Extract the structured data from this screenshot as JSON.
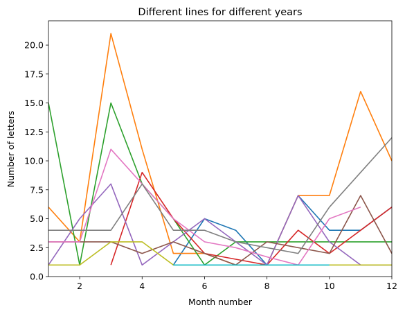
{
  "chart_data": {
    "type": "line",
    "title": "Different lines for different years",
    "xlabel": "Month number",
    "ylabel": "Number of letters",
    "xlim": [
      1,
      12
    ],
    "ylim": [
      0,
      22.1
    ],
    "xticks": [
      2,
      4,
      6,
      8,
      10,
      12
    ],
    "yticks": [
      0.0,
      2.5,
      5.0,
      7.5,
      10.0,
      12.5,
      15.0,
      17.5,
      20.0
    ],
    "ytick_labels": [
      "0.0",
      "2.5",
      "5.0",
      "7.5",
      "10.0",
      "12.5",
      "15.0",
      "17.5",
      "20.0"
    ],
    "grid": false,
    "legend": "none",
    "series": [
      {
        "color": "#1f77b4",
        "x": [
          5,
          6,
          7,
          8,
          9,
          10,
          11,
          12
        ],
        "values": [
          1,
          5,
          4,
          1,
          7,
          4,
          4,
          6
        ]
      },
      {
        "color": "#ff7f0e",
        "x": [
          1,
          2,
          3,
          4,
          5,
          6,
          7,
          8,
          9,
          10,
          11,
          12
        ],
        "values": [
          6,
          3,
          21,
          11,
          2,
          2,
          1,
          1,
          7,
          7,
          16,
          10
        ]
      },
      {
        "color": "#2ca02c",
        "x": [
          1,
          2,
          3,
          4,
          5,
          6,
          7,
          8,
          9,
          10,
          11,
          12
        ],
        "values": [
          15,
          1,
          15,
          8,
          5,
          1,
          3,
          3,
          3,
          3,
          3,
          3
        ]
      },
      {
        "color": "#d62728",
        "x": [
          3,
          4,
          5,
          6,
          7,
          8,
          9,
          10,
          11,
          12
        ],
        "values": [
          1,
          9,
          5,
          2,
          1.5,
          1,
          4,
          2,
          4,
          6
        ]
      },
      {
        "color": "#9467bd",
        "x": [
          1,
          2,
          3,
          4,
          5,
          6,
          7,
          8,
          9,
          10,
          11,
          12
        ],
        "values": [
          1,
          5,
          8,
          1,
          3,
          5,
          3,
          1,
          7,
          3,
          1,
          1
        ]
      },
      {
        "color": "#8c564b",
        "x": [
          1,
          2,
          3,
          4,
          5,
          6,
          7,
          8,
          9,
          10,
          11,
          12
        ],
        "values": [
          3,
          3,
          3,
          2,
          3,
          2,
          1,
          3,
          2.5,
          2,
          7,
          2
        ]
      },
      {
        "color": "#e377c2",
        "x": [
          1,
          2,
          3,
          4,
          5,
          6,
          7,
          8,
          9,
          10,
          11
        ],
        "values": [
          3,
          3,
          11,
          8,
          5,
          3,
          2.5,
          1.7,
          1,
          5,
          6
        ]
      },
      {
        "color": "#7f7f7f",
        "x": [
          1,
          2,
          3,
          4,
          5,
          6,
          7,
          8,
          9,
          10,
          11,
          12
        ],
        "values": [
          4,
          4,
          4,
          8,
          4,
          4,
          3,
          2.5,
          2,
          6,
          9,
          12
        ]
      },
      {
        "color": "#bcbd22",
        "x": [
          1,
          2,
          3,
          4,
          5,
          6,
          7,
          8,
          9,
          10,
          11,
          12
        ],
        "values": [
          1,
          1,
          3,
          3,
          1,
          1,
          1,
          1,
          1,
          1,
          1,
          1
        ]
      },
      {
        "color": "#17becf",
        "x": [
          5,
          6,
          7,
          8,
          9,
          10
        ],
        "values": [
          1,
          1,
          1,
          1,
          1,
          1
        ]
      }
    ]
  }
}
